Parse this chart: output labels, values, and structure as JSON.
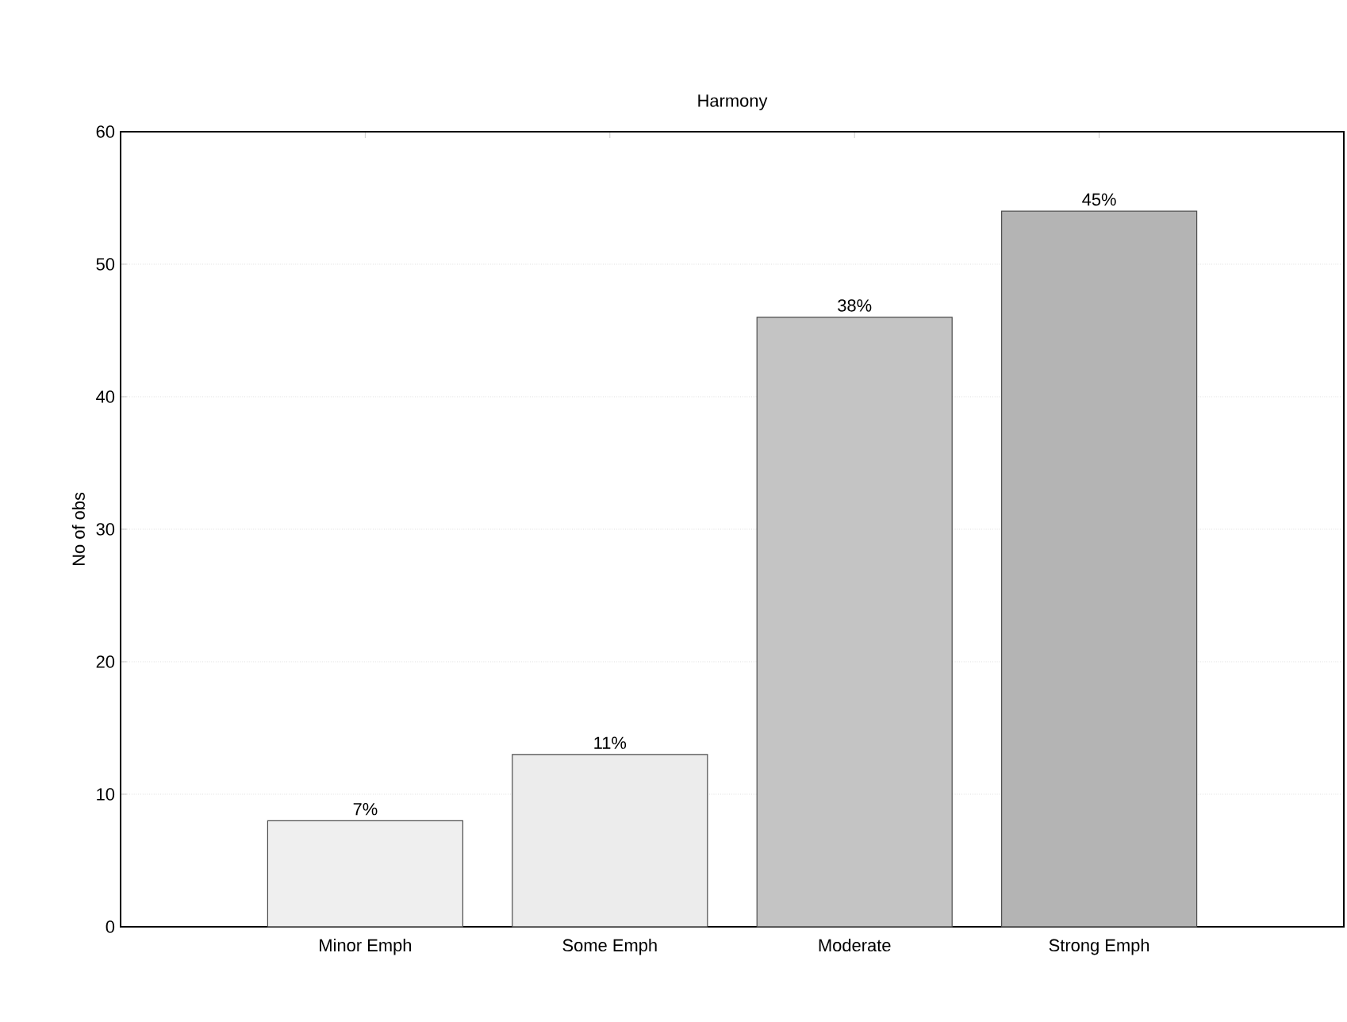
{
  "chart_data": {
    "type": "bar",
    "title": "Harmony",
    "ylabel": "No of obs",
    "categories": [
      "Minor Emph",
      "Some Emph",
      "Moderate",
      "Strong Emph"
    ],
    "values": [
      8,
      13,
      46,
      54
    ],
    "colors": [
      "#efefef",
      "#ececec",
      "#c4c4c4",
      "#b4b4b4"
    ],
    "annotations": [
      {
        "text": "7%",
        "x": "Minor Emph",
        "y": 8
      },
      {
        "text": "11%",
        "x": "Some Emph",
        "y": 13
      },
      {
        "text": "38%",
        "x": "Moderate",
        "y": 46
      },
      {
        "text": "45%",
        "x": "Strong Emph",
        "y": 54
      }
    ],
    "ylim": [
      0,
      60
    ],
    "yticks": [
      0,
      10,
      20,
      30,
      40,
      50,
      60
    ],
    "grid": "y"
  }
}
